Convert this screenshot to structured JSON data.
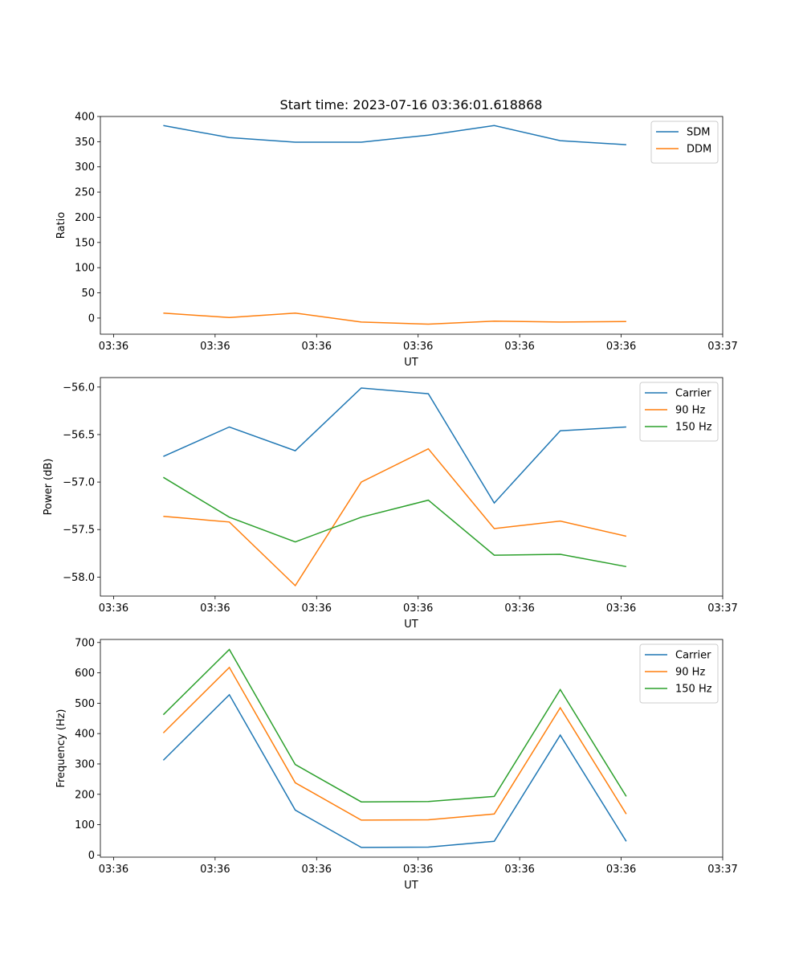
{
  "title": "Start time: 2023-07-16 03:36:01.618868",
  "colors": {
    "blue": "#1f77b4",
    "orange": "#ff7f0e",
    "green": "#2ca02c"
  },
  "chart_data": [
    {
      "type": "line",
      "title": "Start time: 2023-07-16 03:36:01.618868",
      "xlabel": "UT",
      "ylabel": "Ratio",
      "x_unit": "seconds after 03:36:00",
      "x": [
        4.9,
        11.4,
        17.9,
        24.4,
        31.0,
        37.5,
        44.0,
        50.5
      ],
      "xlim": [
        -1.3,
        60
      ],
      "xticks": [
        0,
        10,
        20,
        30,
        40,
        50,
        60
      ],
      "xtick_labels": [
        "03:36",
        "03:36",
        "03:36",
        "03:36",
        "03:36",
        "03:36",
        "03:37"
      ],
      "ylim": [
        -32,
        400
      ],
      "yticks": [
        0,
        50,
        100,
        150,
        200,
        250,
        300,
        350,
        400
      ],
      "ytick_labels": [
        "0",
        "50",
        "100",
        "150",
        "200",
        "250",
        "300",
        "350",
        "400"
      ],
      "legend": "top-right",
      "series": [
        {
          "name": "SDM",
          "color": "#1f77b4",
          "values": [
            382,
            358,
            349,
            349,
            363,
            382,
            352,
            344
          ]
        },
        {
          "name": "DDM",
          "color": "#ff7f0e",
          "values": [
            10,
            1,
            10,
            -8,
            -12,
            -6,
            -8,
            -7
          ]
        }
      ]
    },
    {
      "type": "line",
      "xlabel": "UT",
      "ylabel": "Power (dB)",
      "x_unit": "seconds after 03:36:00",
      "x": [
        4.9,
        11.4,
        17.9,
        24.4,
        31.0,
        37.5,
        44.0,
        50.5
      ],
      "xlim": [
        -1.3,
        60
      ],
      "xticks": [
        0,
        10,
        20,
        30,
        40,
        50,
        60
      ],
      "xtick_labels": [
        "03:36",
        "03:36",
        "03:36",
        "03:36",
        "03:36",
        "03:36",
        "03:37"
      ],
      "ylim": [
        -58.2,
        -55.9
      ],
      "yticks": [
        -58.0,
        -57.5,
        -57.0,
        -56.5,
        -56.0
      ],
      "ytick_labels": [
        "−58.0",
        "−57.5",
        "−57.0",
        "−56.5",
        "−56.0"
      ],
      "legend": "top-right",
      "series": [
        {
          "name": "Carrier",
          "color": "#1f77b4",
          "values": [
            -56.73,
            -56.42,
            -56.67,
            -56.01,
            -56.07,
            -57.22,
            -56.46,
            -56.42
          ]
        },
        {
          "name": "90 Hz",
          "color": "#ff7f0e",
          "values": [
            -57.36,
            -57.42,
            -58.09,
            -57.0,
            -56.65,
            -57.49,
            -57.41,
            -57.57
          ]
        },
        {
          "name": "150 Hz",
          "color": "#2ca02c",
          "values": [
            -56.95,
            -57.37,
            -57.63,
            -57.37,
            -57.19,
            -57.77,
            -57.76,
            -57.89
          ]
        }
      ]
    },
    {
      "type": "line",
      "xlabel": "UT",
      "ylabel": "Frequency (Hz)",
      "x_unit": "seconds after 03:36:00",
      "x": [
        4.9,
        11.4,
        17.9,
        24.4,
        31.0,
        37.5,
        44.0,
        50.5
      ],
      "xlim": [
        -1.3,
        60
      ],
      "xticks": [
        0,
        10,
        20,
        30,
        40,
        50,
        60
      ],
      "xtick_labels": [
        "03:36",
        "03:36",
        "03:36",
        "03:36",
        "03:36",
        "03:36",
        "03:37"
      ],
      "ylim": [
        -7,
        710
      ],
      "yticks": [
        0,
        100,
        200,
        300,
        400,
        500,
        600,
        700
      ],
      "ytick_labels": [
        "0",
        "100",
        "200",
        "300",
        "400",
        "500",
        "600",
        "700"
      ],
      "legend": "top-right",
      "series": [
        {
          "name": "Carrier",
          "color": "#1f77b4",
          "values": [
            312,
            528,
            148,
            25,
            26,
            45,
            395,
            45
          ]
        },
        {
          "name": "90 Hz",
          "color": "#ff7f0e",
          "values": [
            402,
            618,
            238,
            115,
            116,
            135,
            485,
            135
          ]
        },
        {
          "name": "150 Hz",
          "color": "#2ca02c",
          "values": [
            462,
            677,
            298,
            175,
            176,
            193,
            545,
            193
          ]
        }
      ]
    }
  ]
}
